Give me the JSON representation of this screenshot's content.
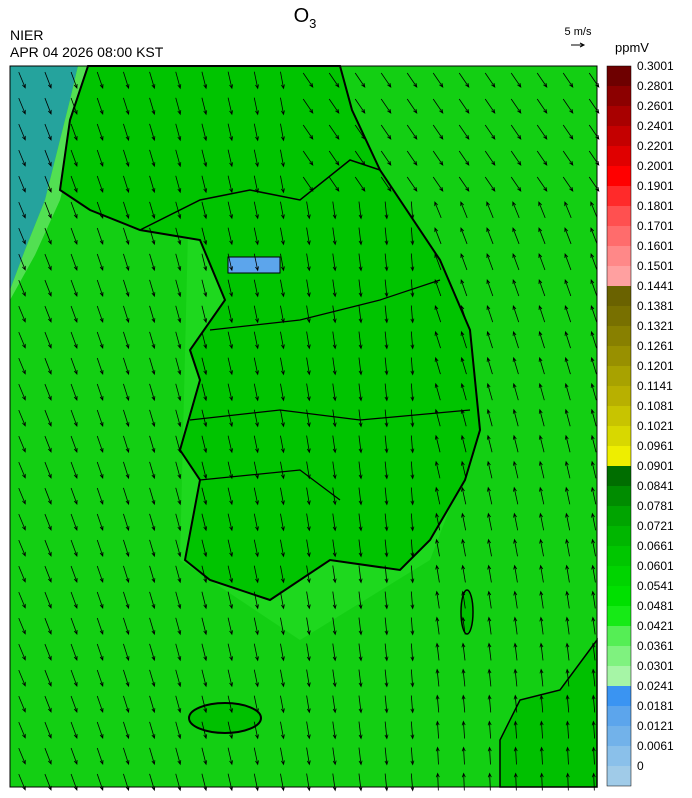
{
  "header": {
    "agency": "NIER",
    "datetime": "APR 04 2026 08:00 KST",
    "title": {
      "base": "O",
      "subscript": "3"
    },
    "vector_scale": "5 m/s"
  },
  "legend": {
    "unit": "ppmV",
    "levels": [
      0,
      0.0061,
      0.0121,
      0.0181,
      0.0241,
      0.0301,
      0.0361,
      0.0421,
      0.0481,
      0.0541,
      0.0601,
      0.0661,
      0.0721,
      0.0781,
      0.0841,
      0.0901,
      0.0961,
      0.1021,
      0.1081,
      0.1141,
      0.1201,
      0.1261,
      0.1321,
      0.1381,
      0.1441,
      0.1501,
      0.1601,
      0.1701,
      0.1801,
      0.1901,
      0.2001,
      0.2201,
      0.2401,
      0.2601,
      0.2801,
      0.3001
    ],
    "colors": [
      "#a0cbe8",
      "#8ac0ea",
      "#72b2ea",
      "#5ca5ec",
      "#3a94f2",
      "#a6f5a6",
      "#7ff27f",
      "#55ee55",
      "#16ea16",
      "#00e000",
      "#00d400",
      "#00c600",
      "#00b600",
      "#00a400",
      "#008c00",
      "#006e00",
      "#eeee00",
      "#d8d800",
      "#c8c400",
      "#b8b000",
      "#a8a200",
      "#989000",
      "#888000",
      "#787000",
      "#6a6200",
      "#ffa0a0",
      "#ff8888",
      "#ff6c6c",
      "#ff5050",
      "#ff2a2a",
      "#ff0000",
      "#e00000",
      "#c40000",
      "#a80000",
      "#8c0000",
      "#6e0000"
    ]
  }
}
